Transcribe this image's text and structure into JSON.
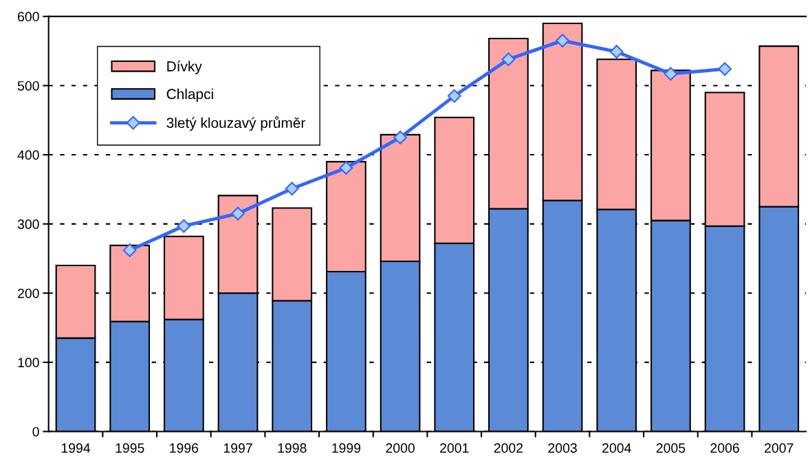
{
  "chart_data": {
    "type": "bar",
    "stacked": true,
    "categories": [
      "1994",
      "1995",
      "1996",
      "1997",
      "1998",
      "1999",
      "2000",
      "2001",
      "2002",
      "2003",
      "2004",
      "2005",
      "2006",
      "2007"
    ],
    "series": [
      {
        "name": "Chlapci",
        "color": "#5b8ad6",
        "values": [
          135,
          159,
          162,
          200,
          189,
          231,
          246,
          272,
          322,
          334,
          321,
          305,
          297,
          325
        ]
      },
      {
        "name": "Dívky",
        "color": "#fca5a5",
        "values": [
          105,
          110,
          120,
          141,
          134,
          159,
          183,
          182,
          246,
          256,
          217,
          217,
          193,
          232
        ]
      },
      {
        "name": "3letý klouzavý průměr",
        "type": "line",
        "color": "#3366ff",
        "marker": "diamond",
        "values": [
          null,
          262,
          297,
          315,
          351,
          381,
          425,
          485,
          538,
          565,
          549,
          517,
          524,
          null
        ]
      }
    ],
    "ylim": [
      0,
      600
    ],
    "yticks": [
      0,
      100,
      200,
      300,
      400,
      500,
      600
    ],
    "grid": "y",
    "legend": "top left"
  }
}
